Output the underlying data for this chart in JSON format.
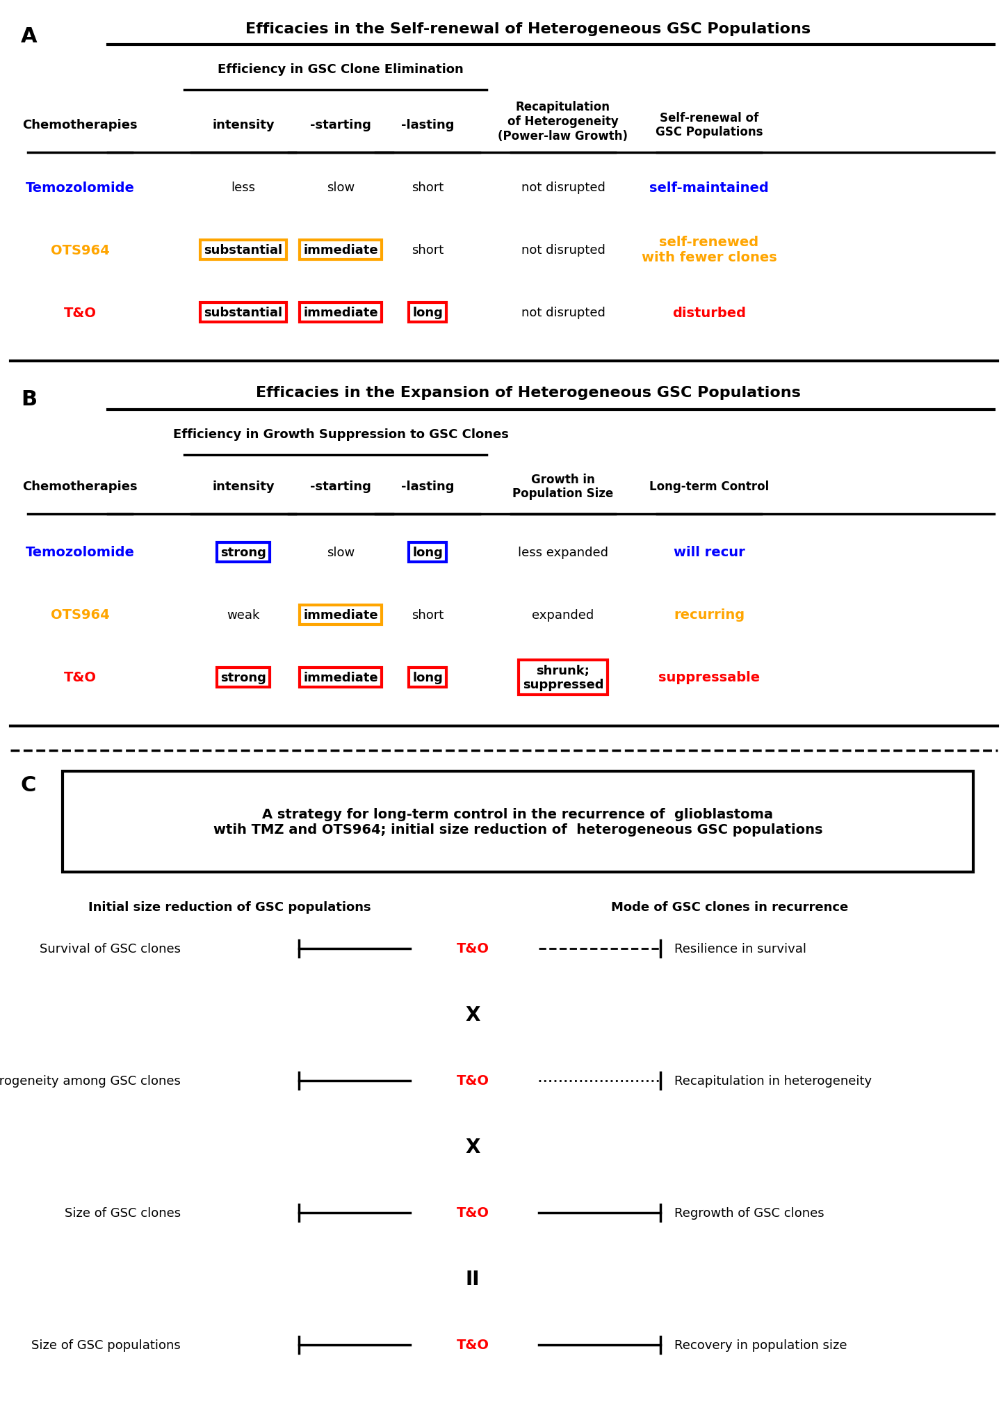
{
  "fig_width": 14.5,
  "fig_height": 20.33,
  "bg_color": "#ffffff",
  "panel_A": {
    "label": "A",
    "title": "Efficacies in the Self-renewal of Heterogeneous GSC Populations",
    "subheader": "Efficiency in GSC Clone Elimination",
    "col_headers": [
      "Chemotherapies",
      "intensity",
      "-starting",
      "-lasting",
      "Recapitulation\nof Heterogeneity\n(Power-law Growth)",
      "Self-renewal of\nGSC Populations"
    ],
    "rows": [
      {
        "name": "Temozolomide",
        "name_color": "#0000ff",
        "intensity": "less",
        "intensity_box": false,
        "intensity_box_color": null,
        "starting": "slow",
        "starting_box": false,
        "starting_box_color": null,
        "lasting": "short",
        "lasting_box": false,
        "lasting_box_color": null,
        "recapitulation": "not disrupted",
        "outcome": "self-maintained",
        "outcome_color": "#0000ff"
      },
      {
        "name": "OTS964",
        "name_color": "#ffa500",
        "intensity": "substantial",
        "intensity_box": true,
        "intensity_box_color": "#ffa500",
        "starting": "immediate",
        "starting_box": true,
        "starting_box_color": "#ffa500",
        "lasting": "short",
        "lasting_box": false,
        "lasting_box_color": null,
        "recapitulation": "not disrupted",
        "outcome": "self-renewed\nwith fewer clones",
        "outcome_color": "#ffa500"
      },
      {
        "name": "T&O",
        "name_color": "#ff0000",
        "intensity": "substantial",
        "intensity_box": true,
        "intensity_box_color": "#ff0000",
        "starting": "immediate",
        "starting_box": true,
        "starting_box_color": "#ff0000",
        "lasting": "long",
        "lasting_box": true,
        "lasting_box_color": "#ff0000",
        "recapitulation": "not disrupted",
        "outcome": "disturbed",
        "outcome_color": "#ff0000"
      }
    ]
  },
  "panel_B": {
    "label": "B",
    "title": "Efficacies in the Expansion of Heterogeneous GSC Populations",
    "subheader": "Efficiency in Growth Suppression to GSC Clones",
    "col_headers": [
      "Chemotherapies",
      "intensity",
      "-starting",
      "-lasting",
      "Growth in\nPopulation Size",
      "Long-term Control"
    ],
    "rows": [
      {
        "name": "Temozolomide",
        "name_color": "#0000ff",
        "intensity": "strong",
        "intensity_box": true,
        "intensity_box_color": "#0000ff",
        "starting": "slow",
        "starting_box": false,
        "starting_box_color": null,
        "lasting": "long",
        "lasting_box": true,
        "lasting_box_color": "#0000ff",
        "growth": "less expanded",
        "growth_box": false,
        "growth_box_color": null,
        "outcome": "will recur",
        "outcome_color": "#0000ff"
      },
      {
        "name": "OTS964",
        "name_color": "#ffa500",
        "intensity": "weak",
        "intensity_box": false,
        "intensity_box_color": null,
        "starting": "immediate",
        "starting_box": true,
        "starting_box_color": "#ffa500",
        "lasting": "short",
        "lasting_box": false,
        "lasting_box_color": null,
        "growth": "expanded",
        "growth_box": false,
        "growth_box_color": null,
        "outcome": "recurring",
        "outcome_color": "#ffa500"
      },
      {
        "name": "T&O",
        "name_color": "#ff0000",
        "intensity": "strong",
        "intensity_box": true,
        "intensity_box_color": "#ff0000",
        "starting": "immediate",
        "starting_box": true,
        "starting_box_color": "#ff0000",
        "lasting": "long",
        "lasting_box": true,
        "lasting_box_color": "#ff0000",
        "growth": "shrunk;\nsuppressed",
        "growth_box": true,
        "growth_box_color": "#ff0000",
        "outcome": "suppressable",
        "outcome_color": "#ff0000"
      }
    ]
  },
  "panel_C": {
    "label": "C",
    "box_text": "A strategy for long-term control in the recurrence of  glioblastoma\nwtih TMZ and OTS964; initial size reduction of  heterogeneous GSC populations",
    "left_header": "Initial size reduction of GSC populations",
    "right_header": "Mode of GSC clones in recurrence",
    "rows": [
      {
        "left": "Survival of GSC clones",
        "connector": "T&O",
        "right": "Resilience in survival",
        "line_style": "dashed"
      },
      {
        "symbol": "X"
      },
      {
        "left": "Heterogeneity among GSC clones",
        "connector": "T&O",
        "right": "Recapitulation in heterogeneity",
        "line_style": "dotted"
      },
      {
        "symbol": "X"
      },
      {
        "left": "Size of GSC clones",
        "connector": "T&O",
        "right": "Regrowth of GSC clones",
        "line_style": "solid"
      },
      {
        "symbol": "II"
      },
      {
        "left": "Size of GSC populations",
        "connector": "T&O",
        "right": "Recovery in population size",
        "line_style": "solid"
      }
    ]
  }
}
